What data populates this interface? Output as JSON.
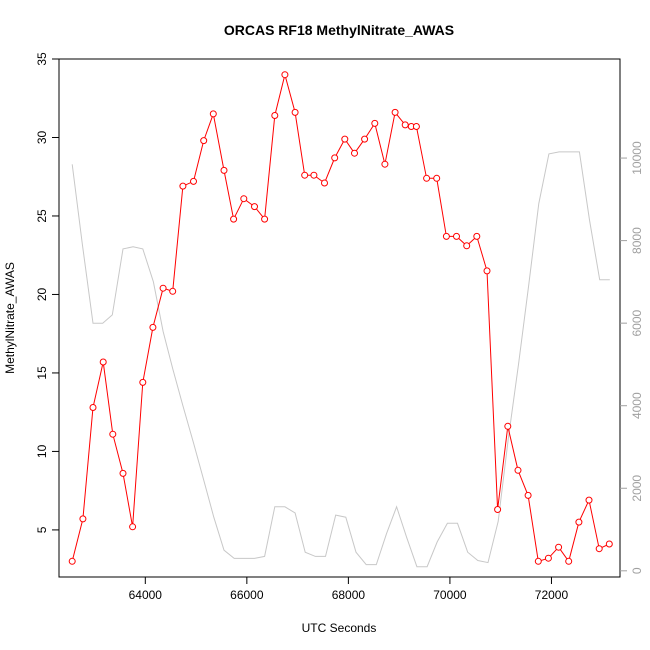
{
  "chart_data": {
    "type": "line",
    "title": "ORCAS RF18 MethylNitrate_AWAS",
    "xlabel": "UTC Seconds",
    "ylabel": "MethylNitrate_AWAS",
    "xlim": [
      62300,
      73350
    ],
    "ylim": [
      2.0,
      35.0
    ],
    "y2lim": [
      -150,
      12400
    ],
    "x_ticks": [
      64000,
      66000,
      68000,
      70000,
      72000
    ],
    "y_ticks": [
      5,
      10,
      15,
      20,
      25,
      30,
      35
    ],
    "y2_ticks": [
      0,
      2000,
      4000,
      6000,
      8000,
      10000
    ],
    "grid": false,
    "series": [
      {
        "color": "#ff0000",
        "marker": "open-circle",
        "axis": "left",
        "x": [
          62560,
          62770,
          62970,
          63170,
          63360,
          63560,
          63750,
          63950,
          64150,
          64350,
          64540,
          64740,
          64950,
          65150,
          65340,
          65550,
          65740,
          65940,
          66150,
          66350,
          66550,
          66750,
          66950,
          67140,
          67320,
          67530,
          67730,
          67930,
          68120,
          68320,
          68520,
          68720,
          68920,
          69120,
          69240,
          69340,
          69540,
          69740,
          69930,
          70130,
          70330,
          70530,
          70730,
          70940,
          71140,
          71340,
          71540,
          71740,
          71940,
          72140,
          72340,
          72540,
          72740,
          72940,
          73140
        ],
        "y": [
          3.0,
          5.7,
          12.8,
          15.7,
          11.1,
          8.6,
          5.2,
          14.4,
          17.9,
          20.4,
          20.2,
          26.9,
          27.2,
          29.8,
          31.5,
          27.9,
          24.8,
          26.1,
          25.6,
          24.8,
          31.4,
          34.0,
          31.6,
          27.6,
          27.6,
          27.1,
          28.7,
          29.9,
          29.0,
          29.9,
          30.9,
          28.3,
          31.6,
          30.8,
          30.7,
          30.7,
          27.4,
          27.4,
          23.7,
          23.7,
          23.1,
          23.7,
          21.5,
          6.3,
          11.6,
          8.8,
          7.2,
          3.0,
          3.2,
          3.9,
          3.0,
          5.5,
          6.9,
          3.8,
          4.1
        ]
      },
      {
        "color": "#c8c8c8",
        "marker": "none",
        "axis": "right",
        "x": [
          62560,
          62760,
          62970,
          63160,
          63350,
          63560,
          63760,
          63950,
          64160,
          64350,
          64540,
          64740,
          64950,
          65150,
          65350,
          65550,
          65750,
          65950,
          66150,
          66350,
          66550,
          66750,
          66950,
          67150,
          67350,
          67550,
          67750,
          67950,
          68150,
          68350,
          68550,
          68750,
          68950,
          69150,
          69350,
          69550,
          69750,
          69950,
          70150,
          70350,
          70550,
          70750,
          70950,
          71150,
          71350,
          71550,
          71750,
          71950,
          72150,
          72350,
          72550,
          72750,
          72950,
          73150
        ],
        "y": [
          9850,
          7900,
          6000,
          6000,
          6200,
          7800,
          7850,
          7800,
          7000,
          5800,
          4900,
          4000,
          3100,
          2200,
          1300,
          500,
          300,
          300,
          300,
          350,
          1550,
          1550,
          1400,
          450,
          350,
          350,
          1350,
          1300,
          450,
          150,
          150,
          900,
          1550,
          800,
          100,
          100,
          700,
          1150,
          1150,
          450,
          250,
          200,
          1200,
          3200,
          5000,
          6900,
          8900,
          10100,
          10150,
          10150,
          10150,
          8500,
          7050,
          7050
        ]
      }
    ]
  }
}
